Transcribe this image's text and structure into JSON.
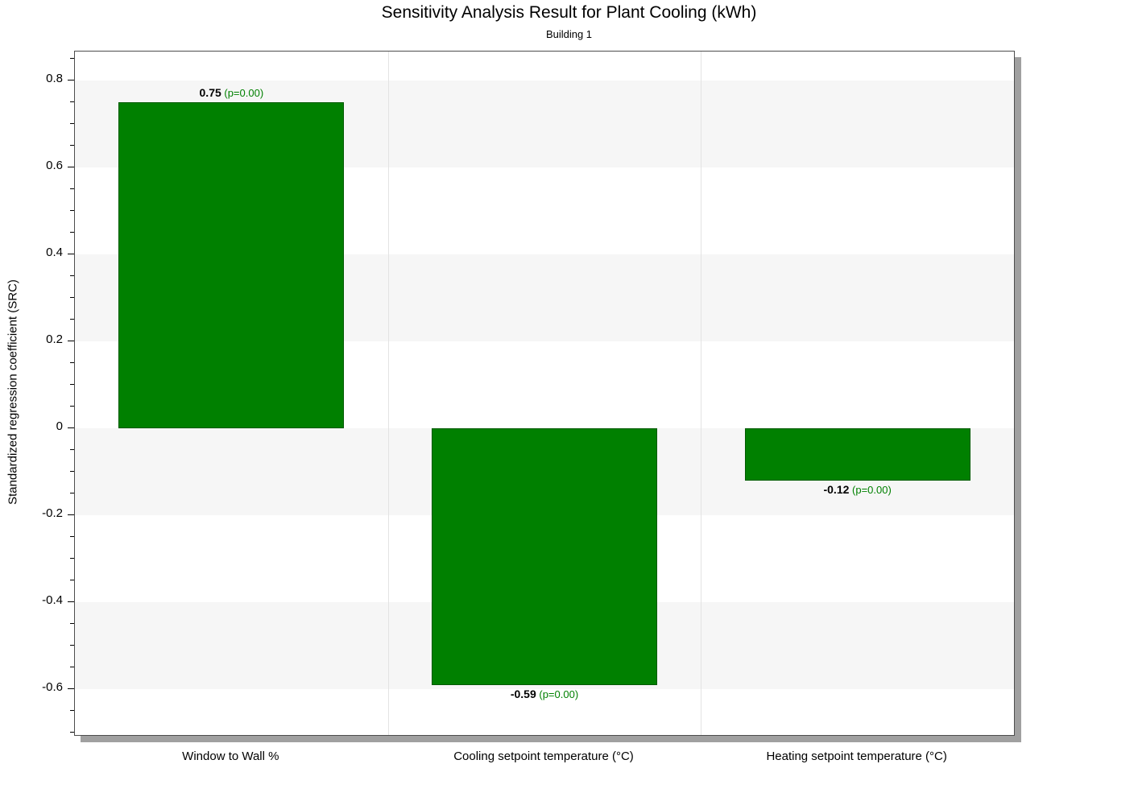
{
  "chart_data": {
    "type": "bar",
    "title": "Sensitivity Analysis Result for Plant Cooling (kWh)",
    "subtitle": "Building 1",
    "ylabel": "Standardized regression coefficient (SRC)",
    "categories": [
      "Window to Wall %",
      "Cooling setpoint temperature (°C)",
      "Heating setpoint temperature (°C)"
    ],
    "values": [
      0.75,
      -0.59,
      -0.12
    ],
    "value_labels": [
      "0.75",
      "-0.59",
      "-0.12"
    ],
    "p_labels": [
      "(p=0.00)",
      "(p=0.00)",
      "(p=0.00)"
    ],
    "ylim": [
      -0.705,
      0.866
    ],
    "yticks": [
      0.8,
      0.6,
      0.4,
      0.2,
      0,
      -0.2,
      -0.4,
      -0.6
    ],
    "ytick_labels": [
      "0.8",
      "0.6",
      "0.4",
      "0.2",
      "0",
      "-0.2",
      "-0.4",
      "-0.6"
    ],
    "minor_tick_step": 0.05,
    "bar_color": "#008000",
    "bar_border_color": "#005a00",
    "p_value_color": "#008000",
    "band_color": "#f6f6f6",
    "grid": "banded-background",
    "legend": "none"
  }
}
